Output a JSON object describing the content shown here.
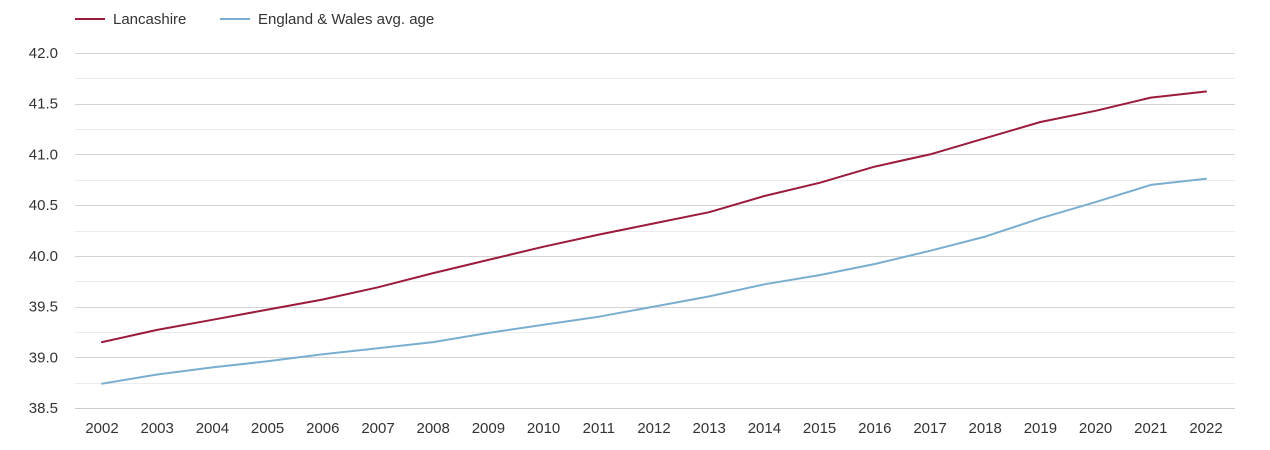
{
  "chart_data": {
    "type": "line",
    "x": [
      "2002",
      "2003",
      "2004",
      "2005",
      "2006",
      "2007",
      "2008",
      "2009",
      "2010",
      "2011",
      "2012",
      "2013",
      "2014",
      "2015",
      "2016",
      "2017",
      "2018",
      "2019",
      "2020",
      "2021",
      "2022"
    ],
    "series": [
      {
        "name": "Lancashire",
        "color": "#9b1b3b",
        "values": [
          39.15,
          39.27,
          39.37,
          39.47,
          39.57,
          39.69,
          39.83,
          39.96,
          40.09,
          40.21,
          40.32,
          40.43,
          40.59,
          40.72,
          40.88,
          41.0,
          41.16,
          41.32,
          41.43,
          41.56,
          41.62
        ]
      },
      {
        "name": "England & Wales avg. age",
        "color": "#7aaecf",
        "values": [
          38.74,
          38.83,
          38.9,
          38.96,
          39.03,
          39.09,
          39.15,
          39.24,
          39.32,
          39.4,
          39.5,
          39.6,
          39.72,
          39.81,
          39.92,
          40.05,
          40.19,
          40.37,
          40.53,
          40.7,
          40.76
        ]
      }
    ],
    "ylim": [
      38.5,
      42.0
    ],
    "yticks": [
      "38.5",
      "39.0",
      "39.5",
      "40.0",
      "40.5",
      "41.0",
      "41.5",
      "42.0"
    ],
    "grid": true,
    "legend_position": "top-left",
    "title": "",
    "xlabel": "",
    "ylabel": ""
  }
}
